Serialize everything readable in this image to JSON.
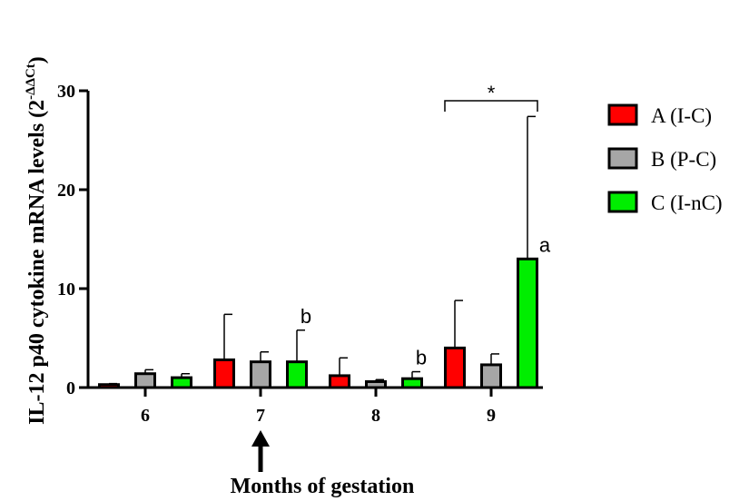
{
  "chart_data": {
    "type": "bar",
    "categories": [
      "6",
      "7",
      "8",
      "9"
    ],
    "xlabel": "Months of gestation",
    "ylabel": "IL-12 p40 cytokine mRNA levels (2",
    "ylabel_superscript": "-ΔΔCt",
    "ylabel_suffix": ")",
    "ylim": [
      0,
      30
    ],
    "yticks": [
      "0",
      "10",
      "20",
      "30"
    ],
    "grid": false,
    "legend_position": "right",
    "series": [
      {
        "name": "A (I-C)",
        "color": "#ff0000",
        "values": [
          0.3,
          2.8,
          1.2,
          4.0
        ],
        "errors": [
          0.1,
          4.6,
          1.8,
          4.8
        ]
      },
      {
        "name": "B (P-C)",
        "color": "#a6a6a6",
        "values": [
          1.4,
          2.6,
          0.6,
          2.3
        ],
        "errors": [
          0.4,
          1.0,
          0.2,
          1.1
        ]
      },
      {
        "name": "C (I-nC)",
        "color": "#00ee00",
        "values": [
          1.0,
          2.6,
          0.9,
          13.0
        ],
        "errors": [
          0.4,
          3.2,
          0.7,
          14.4
        ]
      }
    ],
    "annotations": {
      "letters": [
        {
          "category": "7",
          "series": "C (I-nC)",
          "text": "b"
        },
        {
          "category": "8",
          "series": "C (I-nC)",
          "text": "b"
        },
        {
          "category": "9",
          "series": "C (I-nC)",
          "text": "a"
        }
      ],
      "significance": {
        "category": "9",
        "between": [
          "A (I-C)",
          "C (I-nC)"
        ],
        "text": "*"
      },
      "arrow_category": "7"
    }
  }
}
